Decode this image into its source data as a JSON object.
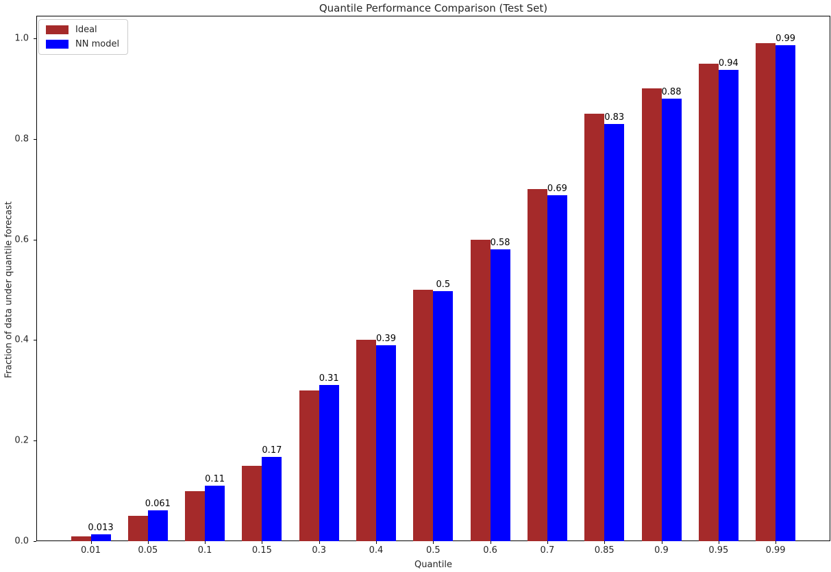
{
  "title": "Quantile Performance Comparison (Test Set)",
  "chart_data": {
    "type": "bar",
    "title": "Quantile Performance Comparison (Test Set)",
    "xlabel": "Quantile",
    "ylabel": "Fraction of data under quantile forecast",
    "categories": [
      "0.01",
      "0.05",
      "0.1",
      "0.15",
      "0.3",
      "0.4",
      "0.5",
      "0.6",
      "0.7",
      "0.85",
      "0.9",
      "0.95",
      "0.99"
    ],
    "series": [
      {
        "name": "Ideal",
        "color": "#a52a2a",
        "values": [
          0.01,
          0.05,
          0.1,
          0.15,
          0.3,
          0.4,
          0.5,
          0.6,
          0.7,
          0.85,
          0.9,
          0.95,
          0.99
        ]
      },
      {
        "name": "NN model",
        "color": "#0000ff",
        "values": [
          0.013,
          0.061,
          0.11,
          0.168,
          0.31,
          0.39,
          0.497,
          0.58,
          0.688,
          0.83,
          0.88,
          0.937,
          0.987
        ]
      }
    ],
    "bar_labels": [
      "0.013",
      "0.061",
      "0.11",
      "0.17",
      "0.31",
      "0.39",
      "0.5",
      "0.58",
      "0.69",
      "0.83",
      "0.88",
      "0.94",
      "0.99"
    ],
    "yticks": [
      "0.0",
      "0.2",
      "0.4",
      "0.6",
      "0.8",
      "1.0"
    ],
    "ylim": [
      0,
      1.045
    ],
    "grid": false,
    "legend_position": "upper left"
  },
  "legend": {
    "items": [
      {
        "label": "Ideal",
        "color": "#a52a2a"
      },
      {
        "label": "NN model",
        "color": "#0000ff"
      }
    ]
  }
}
